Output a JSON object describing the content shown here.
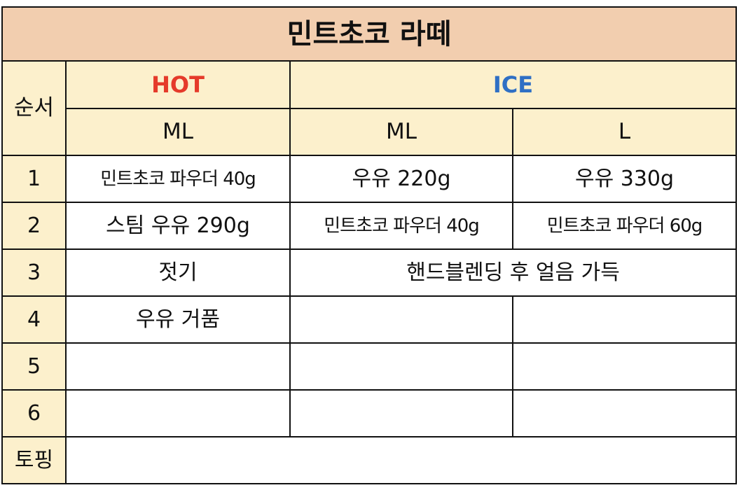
{
  "colors": {
    "title_bg": "#f2ceaf",
    "header_bg": "#fcf0cc",
    "hot": "#e53a2a",
    "ice": "#2f6fc4",
    "border": "#111111"
  },
  "title": "민트초코 라떼",
  "headers": {
    "step": "순서",
    "hot": "HOT",
    "ice": "ICE",
    "hot_size": "ML",
    "ice_size_ml": "ML",
    "ice_size_l": "L"
  },
  "rows": [
    {
      "step": "1",
      "hot": "민트초코 파우더 40g",
      "ice_ml": "우유 220g",
      "ice_l": "우유 330g"
    },
    {
      "step": "2",
      "hot": "스팀 우유 290g",
      "ice_ml": "민트초코 파우더 40g",
      "ice_l": "민트초코 파우더 60g"
    },
    {
      "step": "3",
      "hot": "젓기",
      "ice_merged": "핸드블렌딩 후 얼음 가득"
    },
    {
      "step": "4",
      "hot": "우유 거품",
      "ice_ml": "",
      "ice_l": ""
    },
    {
      "step": "5",
      "hot": "",
      "ice_ml": "",
      "ice_l": ""
    },
    {
      "step": "6",
      "hot": "",
      "ice_ml": "",
      "ice_l": ""
    }
  ],
  "topping": {
    "label": "토핑",
    "value": ""
  }
}
